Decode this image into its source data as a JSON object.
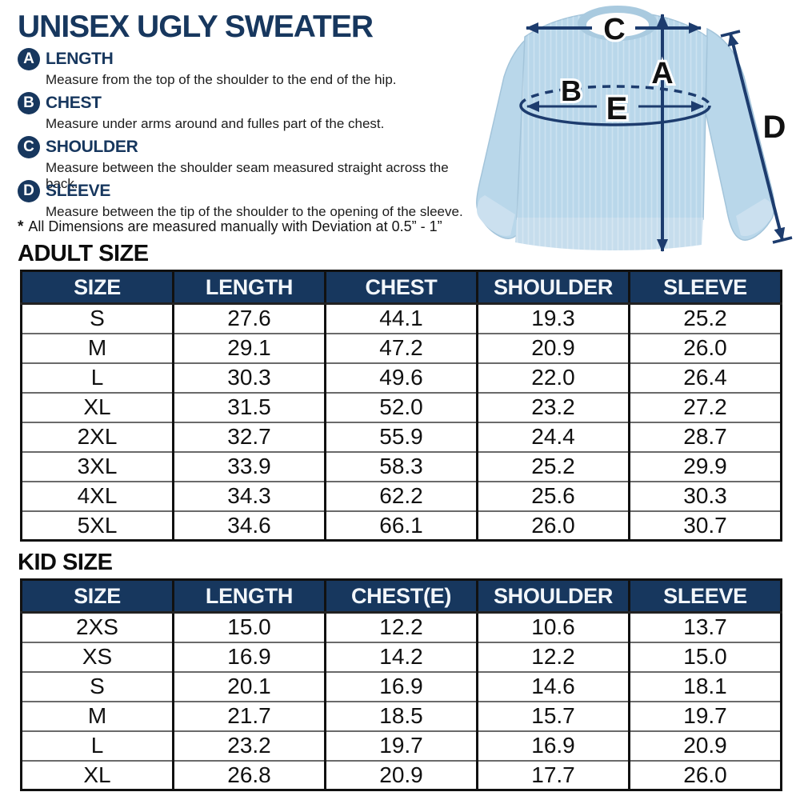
{
  "page": {
    "title": "UNISEX UGLY SWEATER",
    "note_star": "*",
    "note_text": "All Dimensions are measured manually with Deviation at 0.5” - 1”"
  },
  "measurements": {
    "items": [
      {
        "letter": "A",
        "label": "LENGTH",
        "description": "Measure from the top of the shoulder to the end of the hip."
      },
      {
        "letter": "B",
        "label": "CHEST",
        "description": "Measure under arms around and fulles part of the chest."
      },
      {
        "letter": "C",
        "label": "SHOULDER",
        "description": "Measure between the shoulder seam measured straight across the back."
      },
      {
        "letter": "D",
        "label": "SLEEVE",
        "description": "Measure between the tip of the shoulder to the opening of the sleeve."
      }
    ]
  },
  "diagram": {
    "labels": {
      "a": "A",
      "b": "B",
      "c": "C",
      "d": "D",
      "e": "E"
    }
  },
  "adult_table": {
    "section_title": "ADULT SIZE",
    "columns": [
      "SIZE",
      "LENGTH",
      "CHEST",
      "SHOULDER",
      "SLEEVE"
    ],
    "rows": [
      [
        "S",
        "27.6",
        "44.1",
        "19.3",
        "25.2"
      ],
      [
        "M",
        "29.1",
        "47.2",
        "20.9",
        "26.0"
      ],
      [
        "L",
        "30.3",
        "49.6",
        "22.0",
        "26.4"
      ],
      [
        "XL",
        "31.5",
        "52.0",
        "23.2",
        "27.2"
      ],
      [
        "2XL",
        "32.7",
        "55.9",
        "24.4",
        "28.7"
      ],
      [
        "3XL",
        "33.9",
        "58.3",
        "25.2",
        "29.9"
      ],
      [
        "4XL",
        "34.3",
        "62.2",
        "25.6",
        "30.3"
      ],
      [
        "5XL",
        "34.6",
        "66.1",
        "26.0",
        "30.7"
      ]
    ]
  },
  "kid_table": {
    "section_title": "KID SIZE",
    "columns": [
      "SIZE",
      "LENGTH",
      "CHEST(E)",
      "SHOULDER",
      "SLEEVE"
    ],
    "rows": [
      [
        "2XS",
        "15.0",
        "12.2",
        "10.6",
        "13.7"
      ],
      [
        "XS",
        "16.9",
        "14.2",
        "12.2",
        "15.0"
      ],
      [
        "S",
        "20.1",
        "16.9",
        "14.6",
        "18.1"
      ],
      [
        "M",
        "21.7",
        "18.5",
        "15.7",
        "19.7"
      ],
      [
        "L",
        "23.2",
        "19.7",
        "16.9",
        "20.9"
      ],
      [
        "XL",
        "26.8",
        "20.9",
        "17.7",
        "26.0"
      ]
    ]
  },
  "colors": {
    "navy": "#17375e",
    "arrow_navy": "#1d3c6e",
    "sweater_blue": "#b9d7ea",
    "sweater_trim": "#c6dded",
    "text_dark": "#1c1c1c"
  }
}
